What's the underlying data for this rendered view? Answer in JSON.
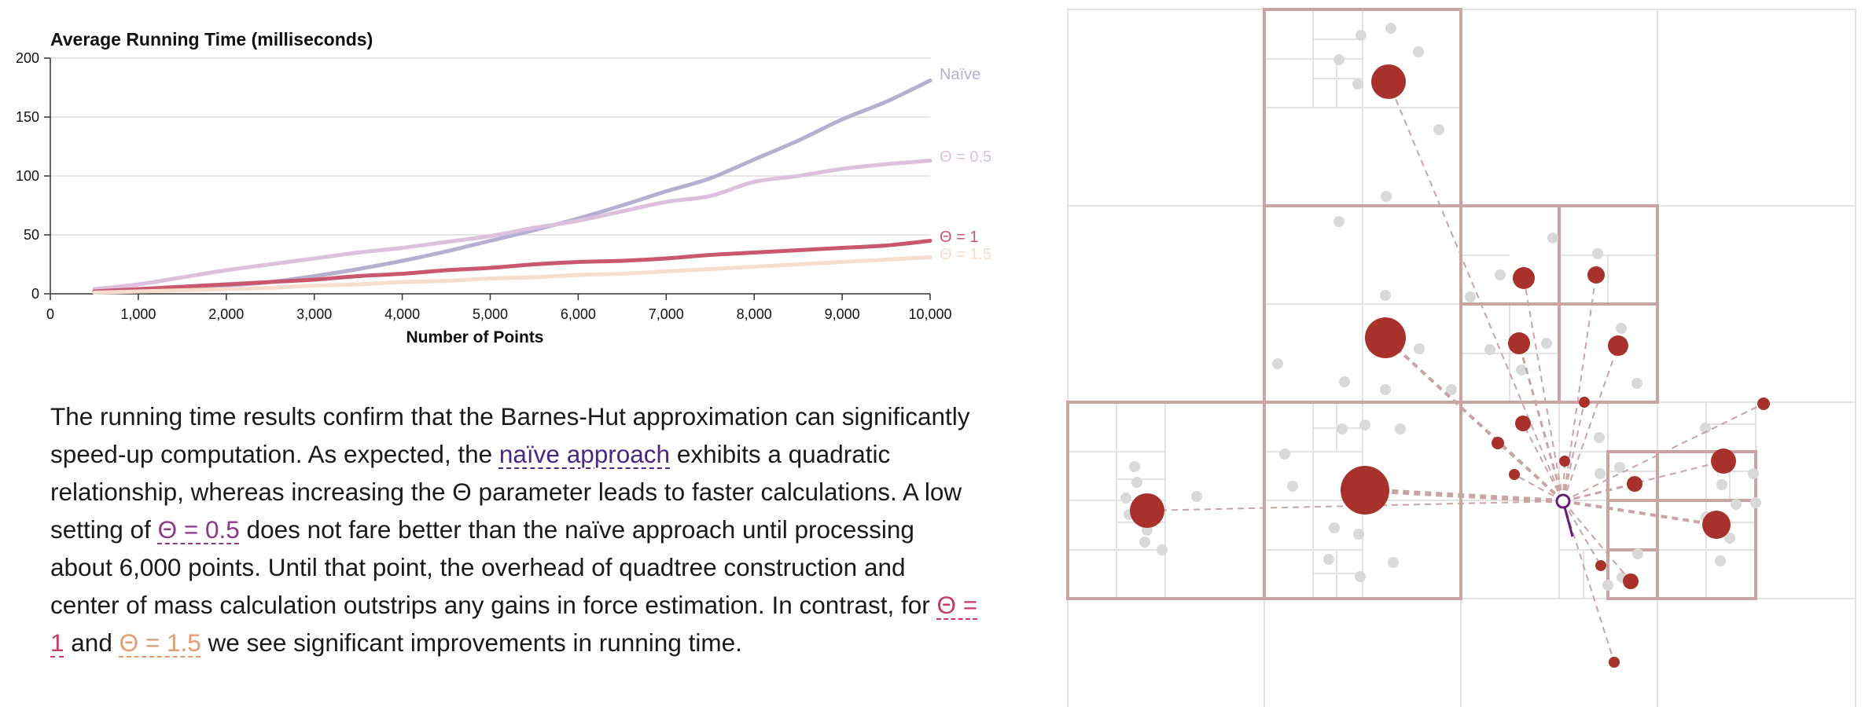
{
  "chart_data": {
    "type": "line",
    "title": "Average Running Time (milliseconds)",
    "xlabel": "Number of Points",
    "ylabel": "",
    "xlim": [
      0,
      10000
    ],
    "ylim": [
      0,
      200
    ],
    "xticks": [
      "0",
      "1,000",
      "2,000",
      "3,000",
      "4,000",
      "5,000",
      "6,000",
      "7,000",
      "8,000",
      "9,000",
      "10,000"
    ],
    "yticks": [
      "0",
      "50",
      "100",
      "150",
      "200"
    ],
    "grid": "horizontal",
    "legend": "line-end labels",
    "x": [
      500,
      1000,
      1500,
      2000,
      2500,
      3000,
      3500,
      4000,
      4500,
      5000,
      5500,
      6000,
      6500,
      7000,
      7500,
      8000,
      8500,
      9000,
      9500,
      10000
    ],
    "series": [
      {
        "name": "Naïve",
        "color": "#b7afd1",
        "values": [
          1,
          2,
          4,
          7,
          10,
          15,
          21,
          28,
          36,
          45,
          54,
          64,
          75,
          87,
          98,
          114,
          130,
          148,
          163,
          181
        ]
      },
      {
        "name": "Θ = 0.5",
        "color": "#dcc0de",
        "values": [
          4,
          8,
          14,
          20,
          25,
          30,
          35,
          39,
          44,
          49,
          56,
          62,
          70,
          78,
          83,
          95,
          100,
          106,
          110,
          113
        ]
      },
      {
        "name": "Θ = 1",
        "color": "#c9576e",
        "values": [
          2,
          4,
          6,
          8,
          10,
          12,
          15,
          17,
          20,
          22,
          25,
          27,
          28,
          30,
          33,
          35,
          37,
          39,
          41,
          45
        ]
      },
      {
        "name": "Θ = 1.5",
        "color": "#f8dccc",
        "values": [
          1,
          2,
          3,
          4,
          5,
          7,
          8,
          10,
          11,
          13,
          14,
          16,
          17,
          19,
          21,
          23,
          25,
          27,
          29,
          31
        ]
      }
    ]
  },
  "paragraph": {
    "t1": "The running time results confirm that the Barnes-Hut approximation can significantly speed-up computation. As expected, the ",
    "link_naive": "naïve approach",
    "t2": " exhibits a quadratic relationship, whereas increasing the Θ parameter leads to faster calculations. A low setting of ",
    "link_t05": "Θ = 0.5",
    "t3": " does not fare better than the naïve approach until processing about 6,000 points. Until that point, the overhead of quadtree construction and center of mass calculation outstrips any gains in force estimation. In contrast, for ",
    "link_t1": "Θ = 1",
    "t4": " and ",
    "link_t15": "Θ = 1.5",
    "t5": " we see significant improvements in running time."
  },
  "colors": {
    "naive": "#4a2785",
    "theta_05": "#8a3a86",
    "theta_1": "#c93a63",
    "theta_15": "#e59b70",
    "node_red": "#a8322b",
    "quad_border": "#c9a4a4",
    "target_purple": "#6a1b7a"
  }
}
